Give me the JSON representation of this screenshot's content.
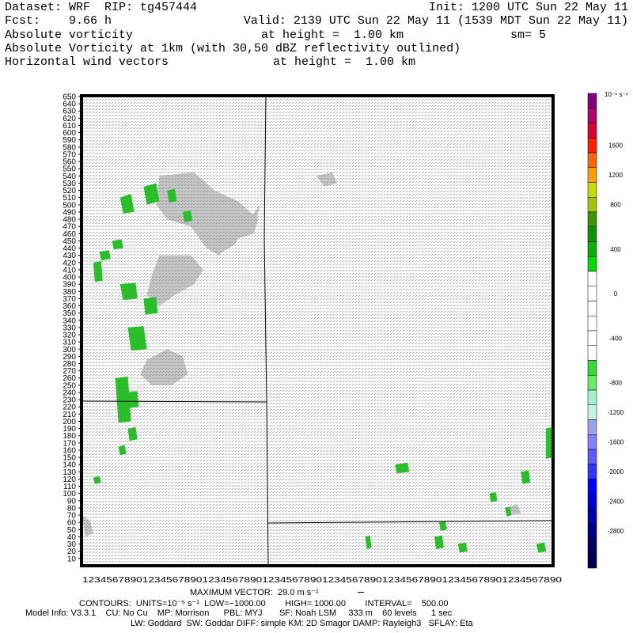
{
  "header": {
    "dataset": "Dataset: WRF  RIP: tg457444",
    "init": "Init: 1200 UTC Sun 22 May 11",
    "fcst": "Fcst:    9.66 h",
    "valid": "Valid: 2139 UTC Sun 22 May 11 (1539 MDT Sun 22 May 11)",
    "field1_name": "Absolute vorticity",
    "field1_height": "at height =  1.00 km",
    "field1_sm": "sm= 5",
    "field2": "Absolute Vorticity at 1km (with 30,50 dBZ reflectivity outlined)",
    "field3_name": "Horizontal wind vectors",
    "field3_height": "at height =  1.00 km"
  },
  "footer": {
    "max_vector": "MAXIMUM VECTOR:  29.0 m s⁻¹",
    "contours": "CONTOURS:  UNITS=10⁻⁵ s⁻¹  LOW=−1000.00        HIGH= 1000.00        INTERVAL=    500.00",
    "model_info": "Model Info: V3.3.1    CU: No Cu    MP: Morrison      PBL: MYJ       SF: Noah LSM     333 m    60 levels      1 sec",
    "model_info2": "LW: Goddard  SW: Goddar DIFF: simple KM: 2D Smagor DAMP: Rayleigh3   SFLAY: Eta"
  },
  "colors": {
    "shade_gray": "#c8c8c8",
    "shade_green": "#1fc81f",
    "vector": "#6e6e6e"
  },
  "chart_data": {
    "type": "heatmap",
    "xlim": [
      1,
      300
    ],
    "ylim": [
      1,
      650
    ],
    "y_ticks": [
      10,
      20,
      30,
      40,
      50,
      60,
      70,
      80,
      90,
      100,
      110,
      120,
      130,
      140,
      150,
      160,
      170,
      180,
      190,
      200,
      210,
      220,
      230,
      240,
      250,
      260,
      270,
      280,
      290,
      300,
      310,
      320,
      330,
      340,
      350,
      360,
      370,
      380,
      390,
      400,
      410,
      420,
      430,
      440,
      450,
      460,
      470,
      480,
      490,
      500,
      510,
      520,
      530,
      540,
      550,
      560,
      570,
      580,
      590,
      600,
      610,
      620,
      630,
      640,
      650
    ],
    "x_ticks_label": "12345678901234567890123456789012345678901234567890123456789012345678901234567890",
    "colorbar": {
      "units": "10⁻⁵ s⁻¹",
      "colors": [
        "#800080",
        "#b4006e",
        "#dc0032",
        "#ff1e00",
        "#ff6400",
        "#ffa000",
        "#c8dc00",
        "#a0c800",
        "#3c9600",
        "#0a9600",
        "#00b400",
        "#00dc00",
        "#ffffff",
        "#ffffff",
        "#ffffff",
        "#ffffff",
        "#ffffff",
        "#ffffff",
        "#32dc32",
        "#64f064",
        "#a0f0c8",
        "#c8f0e6",
        "#a0a0f0",
        "#8080ff",
        "#5a5aff",
        "#3232ff",
        "#0000ff",
        "#0000dc",
        "#0000b4",
        "#00008c",
        "#000064",
        "#000050"
      ],
      "labels": [
        "1600",
        "1200",
        "800",
        "400",
        "0",
        "-400",
        "-800",
        "-1200",
        "-1600",
        "-2000",
        "-2400",
        "-2800"
      ]
    }
  }
}
